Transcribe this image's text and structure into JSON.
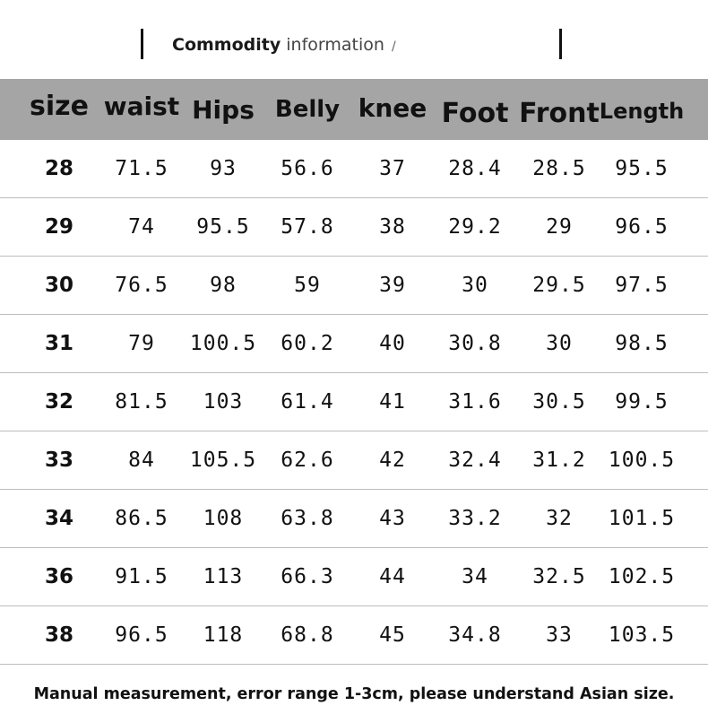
{
  "title": {
    "strong": "Commodity",
    "light": "information",
    "slash": "/"
  },
  "table": {
    "headers": [
      "size",
      "waist",
      "Hips",
      "Belly",
      "knee",
      "Foot",
      "Front",
      "Length"
    ],
    "rows": [
      [
        "28",
        "71.5",
        "93",
        "56.6",
        "37",
        "28.4",
        "28.5",
        "95.5"
      ],
      [
        "29",
        "74",
        "95.5",
        "57.8",
        "38",
        "29.2",
        "29",
        "96.5"
      ],
      [
        "30",
        "76.5",
        "98",
        "59",
        "39",
        "30",
        "29.5",
        "97.5"
      ],
      [
        "31",
        "79",
        "100.5",
        "60.2",
        "40",
        "30.8",
        "30",
        "98.5"
      ],
      [
        "32",
        "81.5",
        "103",
        "61.4",
        "41",
        "31.6",
        "30.5",
        "99.5"
      ],
      [
        "33",
        "84",
        "105.5",
        "62.6",
        "42",
        "32.4",
        "31.2",
        "100.5"
      ],
      [
        "34",
        "86.5",
        "108",
        "63.8",
        "43",
        "33.2",
        "32",
        "101.5"
      ],
      [
        "36",
        "91.5",
        "113",
        "66.3",
        "44",
        "34",
        "32.5",
        "102.5"
      ],
      [
        "38",
        "96.5",
        "118",
        "68.8",
        "45",
        "34.8",
        "33",
        "103.5"
      ]
    ]
  },
  "footer": "Manual measurement, error range 1-3cm, please understand Asian size.",
  "colors": {
    "header_bg": "#a5a5a5",
    "divider": "#bdbdbd",
    "text": "#111111"
  }
}
